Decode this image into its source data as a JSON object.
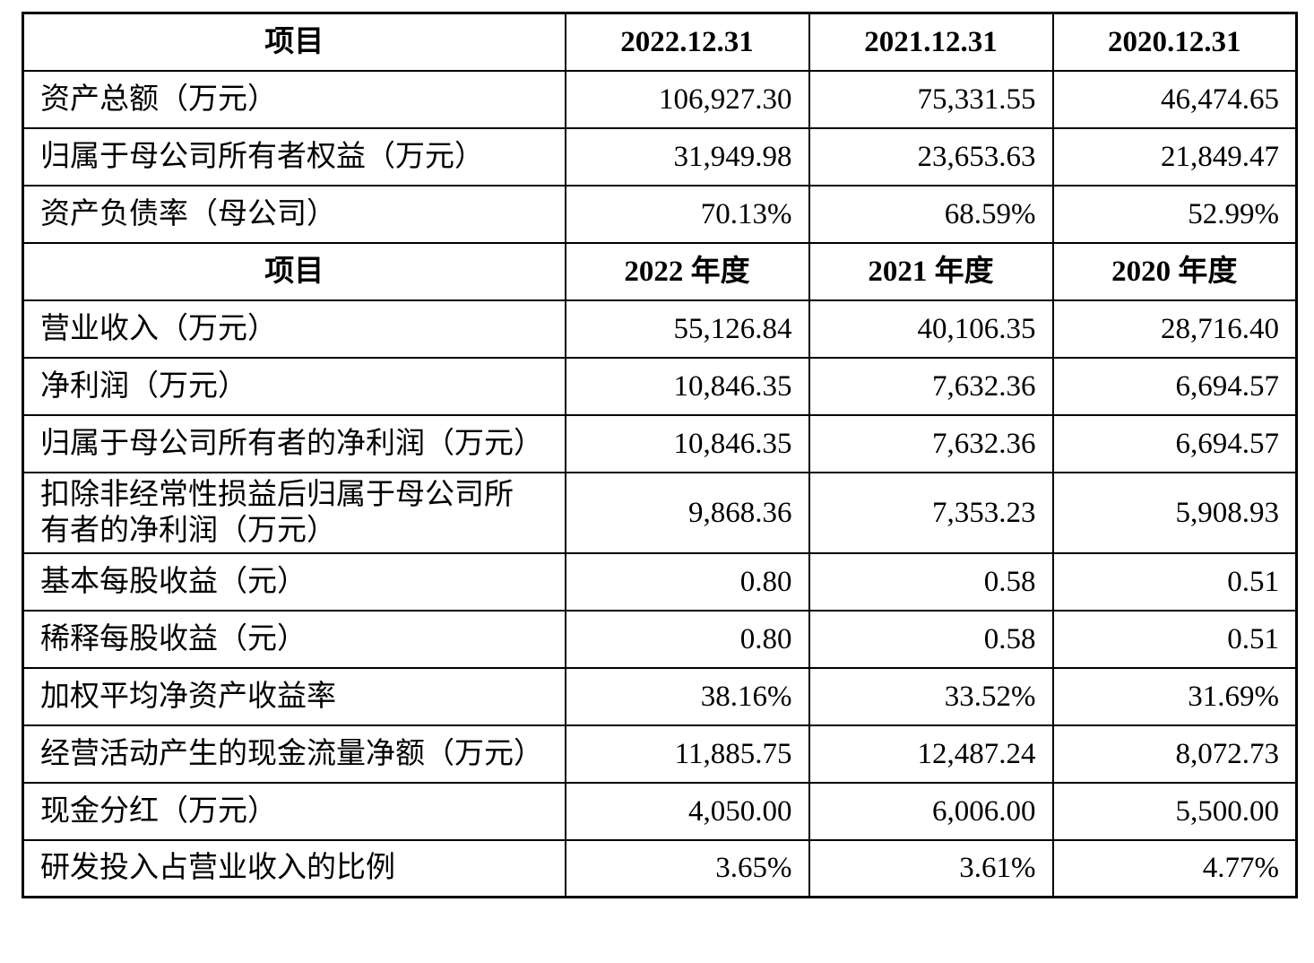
{
  "table": {
    "sections": [
      {
        "header": [
          "项目",
          "2022.12.31",
          "2021.12.31",
          "2020.12.31"
        ],
        "rows": [
          [
            "资产总额（万元）",
            "106,927.30",
            "75,331.55",
            "46,474.65"
          ],
          [
            "归属于母公司所有者权益（万元）",
            "31,949.98",
            "23,653.63",
            "21,849.47"
          ],
          [
            "资产负债率（母公司）",
            "70.13%",
            "68.59%",
            "52.99%"
          ]
        ]
      },
      {
        "header": [
          "项目",
          "2022 年度",
          "2021 年度",
          "2020 年度"
        ],
        "rows": [
          [
            "营业收入（万元）",
            "55,126.84",
            "40,106.35",
            "28,716.40"
          ],
          [
            "净利润（万元）",
            "10,846.35",
            "7,632.36",
            "6,694.57"
          ],
          [
            "归属于母公司所有者的净利润（万元）",
            "10,846.35",
            "7,632.36",
            "6,694.57"
          ],
          [
            "扣除非经常性损益后归属于母公司所有者的净利润（万元）",
            "9,868.36",
            "7,353.23",
            "5,908.93"
          ],
          [
            "基本每股收益（元）",
            "0.80",
            "0.58",
            "0.51"
          ],
          [
            "稀释每股收益（元）",
            "0.80",
            "0.58",
            "0.51"
          ],
          [
            "加权平均净资产收益率",
            "38.16%",
            "33.52%",
            "31.69%"
          ],
          [
            "经营活动产生的现金流量净额（万元）",
            "11,885.75",
            "12,487.24",
            "8,072.73"
          ],
          [
            "现金分红（万元）",
            "4,050.00",
            "6,006.00",
            "5,500.00"
          ],
          [
            "研发投入占营业收入的比例",
            "3.65%",
            "3.61%",
            "4.77%"
          ]
        ]
      }
    ]
  }
}
